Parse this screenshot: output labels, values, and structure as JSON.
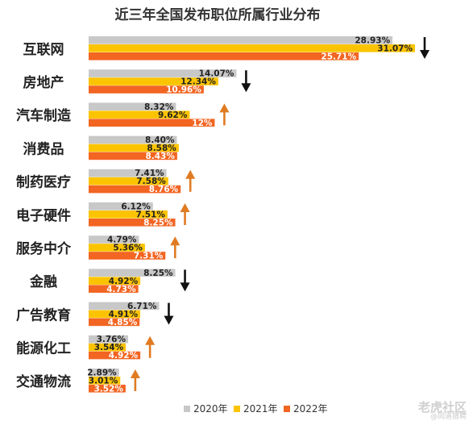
{
  "chart_data": {
    "type": "bar",
    "orientation": "horizontal",
    "title": "近三年全国发布职位所属行业分布",
    "categories": [
      "互联网",
      "房地产",
      "汽车制造",
      "消费品",
      "制药医疗",
      "电子硬件",
      "服务中介",
      "金融",
      "广告教育",
      "能源化工",
      "交通物流"
    ],
    "series": [
      {
        "name": "2020年",
        "color": "#c8c8c8",
        "values": [
          28.93,
          14.07,
          8.32,
          8.4,
          7.41,
          6.12,
          4.79,
          8.25,
          6.71,
          3.76,
          2.89
        ],
        "labels": [
          "28.93%",
          "14.07%",
          "8.32%",
          "8.40%",
          "7.41%",
          "6.12%",
          "4.79%",
          "8.25%",
          "6.71%",
          "3.76%",
          "2.89%"
        ]
      },
      {
        "name": "2021年",
        "color": "#fcc400",
        "values": [
          31.07,
          12.34,
          9.62,
          8.58,
          7.58,
          7.51,
          5.36,
          4.92,
          4.91,
          3.54,
          3.01
        ],
        "labels": [
          "31.07%",
          "12.34%",
          "9.62%",
          "8.58%",
          "7.58%",
          "7.51%",
          "5.36%",
          "4.92%",
          "4.91%",
          "3.54%",
          "3.01%"
        ]
      },
      {
        "name": "2022年",
        "color": "#f26522",
        "values": [
          25.71,
          10.96,
          12,
          8.43,
          8.76,
          8.25,
          7.31,
          4.73,
          4.85,
          4.92,
          3.52
        ],
        "labels": [
          "25.71%",
          "10.96%",
          "12%",
          "8.43%",
          "8.76%",
          "8.25%",
          "7.31%",
          "4.73%",
          "4.85%",
          "4.92%",
          "3.52%"
        ]
      }
    ],
    "trend": [
      "down",
      "down",
      "up",
      "none",
      "up",
      "up",
      "up",
      "down",
      "down",
      "up",
      "up"
    ],
    "trend_colors": {
      "up": "#e07b22",
      "down": "#111111"
    },
    "xlim": [
      0,
      31.07
    ],
    "legend": "bottom",
    "grid": false
  },
  "watermark": {
    "main": "老虎社区",
    "sub": "@同道猎聘"
  }
}
